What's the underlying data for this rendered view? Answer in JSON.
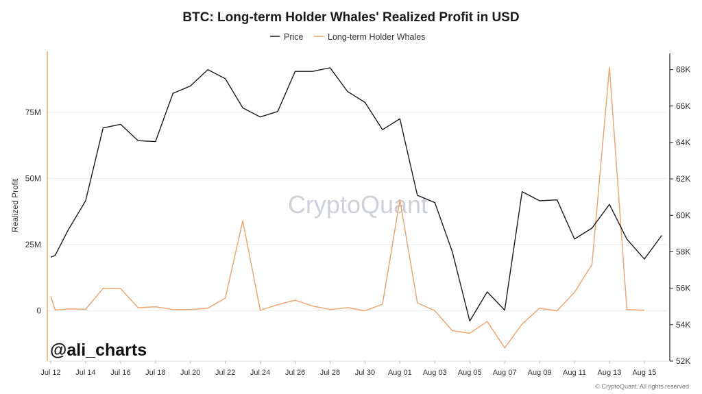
{
  "chart_data": {
    "type": "line",
    "title": "BTC: Long-term Holder Whales' Realized Profit in USD",
    "watermark": "CryptoQuant",
    "handle": "@ali_charts",
    "copyright": "© CryptoQuant. All rights reserved",
    "ylabel": "Realized Profit",
    "x_ticks": [
      "Jul 12",
      "Jul 14",
      "Jul 16",
      "Jul 18",
      "Jul 20",
      "Jul 22",
      "Jul 24",
      "Jul 26",
      "Jul 28",
      "Jul 30",
      "Aug 01",
      "Aug 03",
      "Aug 05",
      "Aug 07",
      "Aug 09",
      "Aug 11",
      "Aug 13",
      "Aug 15"
    ],
    "x_domain": [
      0,
      35.3
    ],
    "left_axis": {
      "ylim": [
        -19000000,
        98000000
      ],
      "ticks": [
        0,
        25000000,
        50000000,
        75000000
      ],
      "tick_labels": [
        "0",
        "25M",
        "50M",
        "75M"
      ]
    },
    "right_axis": {
      "ylim": [
        52000,
        69000
      ],
      "ticks": [
        52000,
        54000,
        56000,
        58000,
        60000,
        62000,
        64000,
        66000,
        68000
      ],
      "tick_labels": [
        "52K",
        "54K",
        "56K",
        "58K",
        "60K",
        "62K",
        "64K",
        "66K",
        "68K"
      ]
    },
    "series": [
      {
        "name": "Price",
        "axis": "right",
        "color": "#1a1a1a",
        "x": [
          0,
          0.25,
          1,
          2,
          3,
          4,
          5,
          6,
          7,
          8,
          9,
          10,
          11,
          12,
          13,
          14,
          15,
          16,
          17,
          18,
          19,
          20,
          21,
          22,
          23,
          24,
          25,
          26,
          27,
          28,
          29,
          30,
          31,
          32,
          33,
          34,
          35
        ],
        "values": [
          57.7,
          57.8,
          59.2,
          60.8,
          64.8,
          65.0,
          64.1,
          64.05,
          66.7,
          67.1,
          68.0,
          67.5,
          65.9,
          65.4,
          65.7,
          67.9,
          67.9,
          68.1,
          66.8,
          66.2,
          64.7,
          65.3,
          61.1,
          60.7,
          58.0,
          54.2,
          55.8,
          54.8,
          61.3,
          60.8,
          60.85,
          58.7,
          59.3,
          60.6,
          58.7,
          57.6,
          58.9
        ],
        "unit_scale": 1000
      },
      {
        "name": "Long-term Holder Whales",
        "axis": "left",
        "color": "#f0a670",
        "x": [
          0,
          0.25,
          1,
          2,
          3,
          4,
          5,
          6,
          7,
          8,
          9,
          10,
          11,
          12,
          13,
          14,
          15,
          16,
          17,
          18,
          19,
          20,
          21,
          22,
          23,
          24,
          25,
          26,
          27,
          28,
          29,
          30,
          31,
          32,
          33,
          34,
          35
        ],
        "values": [
          5500000,
          300000,
          700000,
          600000,
          8500000,
          8400000,
          1200000,
          1500000,
          500000,
          500000,
          1000000,
          4800000,
          34000000,
          200000,
          2300000,
          4000000,
          1800000,
          500000,
          1200000,
          0,
          2500000,
          42000000,
          3000000,
          0,
          -7500000,
          -8500000,
          -4000000,
          -14000000,
          -5000000,
          1000000,
          0,
          7000000,
          17500000,
          92000000,
          500000,
          200000,
          null
        ]
      }
    ]
  }
}
